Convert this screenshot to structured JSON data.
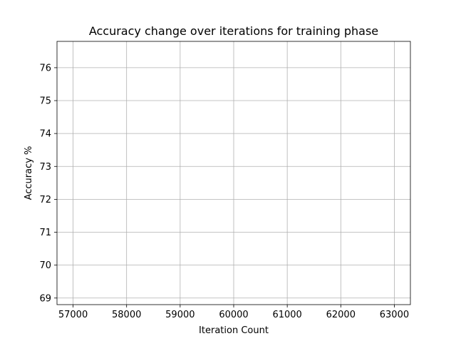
{
  "chart_data": {
    "type": "line",
    "title": "Accuracy change over iterations for training phase",
    "xlabel": "Iteration Count",
    "ylabel": "Accuracy %",
    "xlim": [
      56700,
      63300
    ],
    "ylim": [
      68.8,
      76.8
    ],
    "xticks": [
      57000,
      58000,
      59000,
      60000,
      61000,
      62000,
      63000
    ],
    "yticks": [
      69,
      70,
      71,
      72,
      73,
      74,
      75,
      76
    ],
    "grid": true,
    "series": []
  }
}
